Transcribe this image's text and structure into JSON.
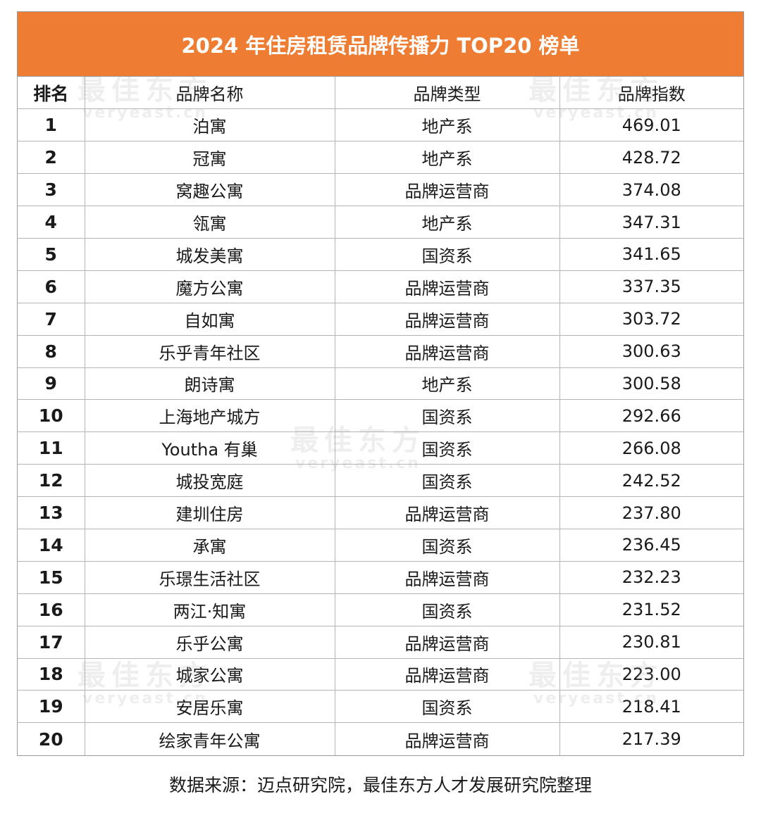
{
  "title": "2024 年住房租赁品牌传播力 TOP20 榜单",
  "headers": {
    "rank": "排名",
    "name": "品牌名称",
    "type": "品牌类型",
    "index": "品牌指数"
  },
  "rows": [
    {
      "rank": "1",
      "name": "泊寓",
      "type": "地产系",
      "index": "469.01"
    },
    {
      "rank": "2",
      "name": "冠寓",
      "type": "地产系",
      "index": "428.72"
    },
    {
      "rank": "3",
      "name": "窝趣公寓",
      "type": "品牌运营商",
      "index": "374.08"
    },
    {
      "rank": "4",
      "name": "瓴寓",
      "type": "地产系",
      "index": "347.31"
    },
    {
      "rank": "5",
      "name": "城发美寓",
      "type": "国资系",
      "index": "341.65"
    },
    {
      "rank": "6",
      "name": "魔方公寓",
      "type": "品牌运营商",
      "index": "337.35"
    },
    {
      "rank": "7",
      "name": "自如寓",
      "type": "品牌运营商",
      "index": "303.72"
    },
    {
      "rank": "8",
      "name": "乐乎青年社区",
      "type": "品牌运营商",
      "index": "300.63"
    },
    {
      "rank": "9",
      "name": "朗诗寓",
      "type": "地产系",
      "index": "300.58"
    },
    {
      "rank": "10",
      "name": "上海地产城方",
      "type": "国资系",
      "index": "292.66"
    },
    {
      "rank": "11",
      "name": "Youtha 有巢",
      "type": "国资系",
      "index": "266.08"
    },
    {
      "rank": "12",
      "name": "城投宽庭",
      "type": "国资系",
      "index": "242.52"
    },
    {
      "rank": "13",
      "name": "建圳住房",
      "type": "品牌运营商",
      "index": "237.80"
    },
    {
      "rank": "14",
      "name": "承寓",
      "type": "国资系",
      "index": "236.45"
    },
    {
      "rank": "15",
      "name": "乐璟生活社区",
      "type": "品牌运营商",
      "index": "232.23"
    },
    {
      "rank": "16",
      "name": "两江·知寓",
      "type": "国资系",
      "index": "231.52"
    },
    {
      "rank": "17",
      "name": "乐乎公寓",
      "type": "品牌运营商",
      "index": "230.81"
    },
    {
      "rank": "18",
      "name": "城家公寓",
      "type": "品牌运营商",
      "index": "223.00"
    },
    {
      "rank": "19",
      "name": "安居乐寓",
      "type": "国资系",
      "index": "218.41"
    },
    {
      "rank": "20",
      "name": "绘家青年公寓",
      "type": "品牌运营商",
      "index": "217.39"
    }
  ],
  "watermark": {
    "cn": "最佳东方",
    "en": "veryeast.cn"
  },
  "source": "数据来源：迈点研究院，最佳东方人才发展研究院整理",
  "colors": {
    "title_bg": "#ee7d33",
    "title_text": "#ffffff",
    "border": "#b5b5b5"
  }
}
